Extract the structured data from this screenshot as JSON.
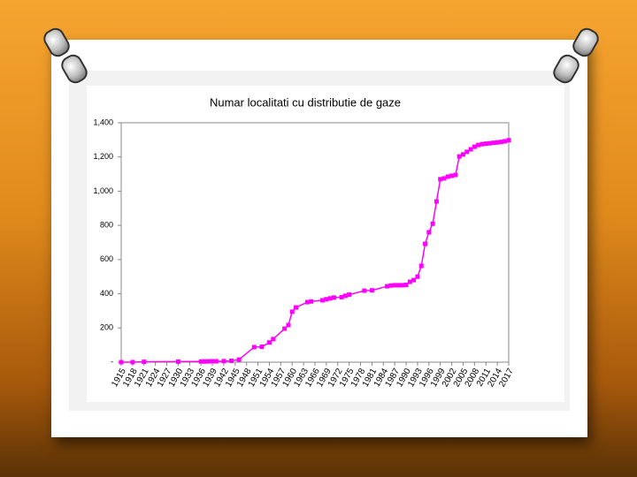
{
  "chart_data": {
    "type": "line",
    "title": "Numar localitati cu distributie de gaze",
    "x": [
      1915,
      1918,
      1921,
      1930,
      1936,
      1937,
      1938,
      1939,
      1940,
      1942,
      1944,
      1946,
      1950,
      1952,
      1954,
      1955,
      1958,
      1959,
      1960,
      1961,
      1964,
      1965,
      1968,
      1969,
      1970,
      1971,
      1973,
      1974,
      1975,
      1979,
      1981,
      1985,
      1986,
      1987,
      1988,
      1989,
      1990,
      1991,
      1992,
      1993,
      1994,
      1995,
      1996,
      1997,
      1998,
      1999,
      2000,
      2001,
      2002,
      2003,
      2004,
      2005,
      2006,
      2007,
      2008,
      2009,
      2010,
      2011,
      2012,
      2013,
      2014,
      2015,
      2016,
      2017
    ],
    "series": [
      {
        "color": "#ff00ff",
        "values": [
          0,
          0,
          2,
          3,
          4,
          4,
          5,
          5,
          5,
          6,
          8,
          15,
          88,
          90,
          115,
          135,
          196,
          217,
          295,
          320,
          351,
          355,
          362,
          368,
          373,
          378,
          380,
          388,
          395,
          418,
          420,
          444,
          448,
          450,
          450,
          450,
          452,
          470,
          480,
          500,
          563,
          692,
          760,
          810,
          940,
          1070,
          1075,
          1085,
          1090,
          1095,
          1203,
          1215,
          1230,
          1245,
          1260,
          1270,
          1275,
          1278,
          1280,
          1283,
          1285,
          1288,
          1292,
          1298
        ]
      }
    ],
    "xlim": [
      1915,
      2017
    ],
    "xticks": [
      1915,
      1918,
      1921,
      1924,
      1927,
      1930,
      1933,
      1936,
      1939,
      1942,
      1945,
      1948,
      1951,
      1954,
      1957,
      1960,
      1963,
      1966,
      1969,
      1972,
      1975,
      1978,
      1981,
      1984,
      1987,
      1990,
      1993,
      1996,
      1999,
      2002,
      2005,
      2008,
      2011,
      2014,
      2017
    ],
    "ylim": [
      0,
      1400
    ],
    "yticks": [
      {
        "value": 0,
        "label": "-"
      },
      200,
      400,
      600,
      800,
      {
        "value": 1000,
        "label": "1,000"
      },
      {
        "value": 1200,
        "label": "1,200"
      },
      {
        "value": 1400,
        "label": "1,400"
      }
    ],
    "grid": false
  }
}
